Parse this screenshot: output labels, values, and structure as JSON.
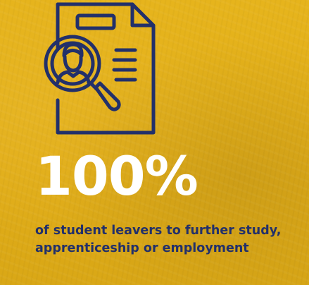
{
  "tile": {
    "icon": "document-search-person-icon",
    "stat_value": "100%",
    "caption": "of student leavers to further study, apprenticeship or employment"
  },
  "colors": {
    "background": "#e2ae18",
    "navy": "#22306a",
    "stat_text": "#ffffff"
  }
}
